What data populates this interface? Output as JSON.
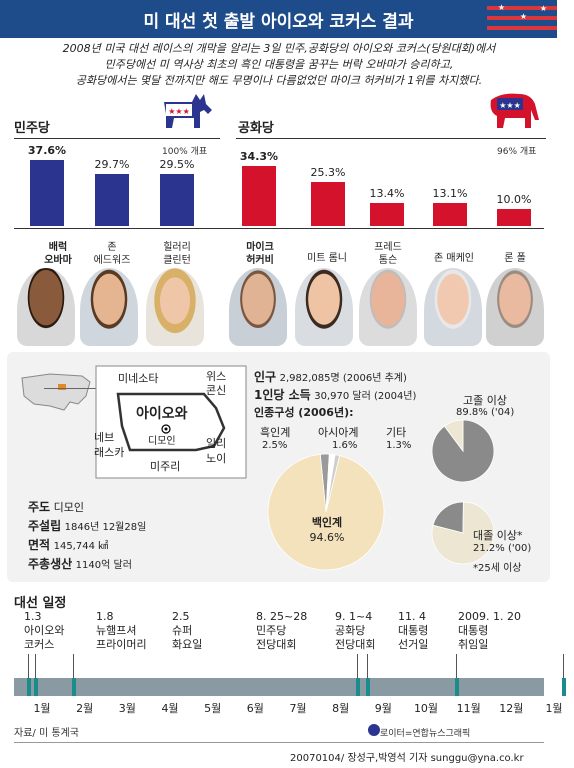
{
  "header": {
    "title": "미 대선 첫 출발 아이오와 코커스 결과",
    "intro": "2008년 미국 대선 레이스의 개막을 알리는 3일 민주,공화당의 아이오와 코커스(당원대회)에서\n민주당에선 미 역사상 최초의 흑인 대통령을 꿈꾸는 버락 오바마가 승리하고,\n공화당에서는 몇달 전까지만 해도 무명이나 다름없었던 마이크 허커비가 1위를 차지했다."
  },
  "chart_data": [
    {
      "type": "bar",
      "title": "민주당",
      "turnout_note": "100% 개표",
      "categories": [
        "배럭\n오바마",
        "존\n에드워즈",
        "힐러리\n클린턴"
      ],
      "values": [
        37.6,
        29.7,
        29.5
      ],
      "value_labels": [
        "37.6%",
        "29.7%",
        "29.5%"
      ],
      "ylim": [
        0,
        40
      ],
      "color": "#2b3590"
    },
    {
      "type": "bar",
      "title": "공화당",
      "turnout_note": "96% 개표",
      "categories": [
        "마이크\n허커비",
        "미트 롬니",
        "프레드\n톰슨",
        "존 매케인",
        "론 폴"
      ],
      "values": [
        34.3,
        25.3,
        13.4,
        13.1,
        10.0
      ],
      "value_labels": [
        "34.3%",
        "25.3%",
        "13.4%",
        "13.1%",
        "10.0%"
      ],
      "ylim": [
        0,
        40
      ],
      "color": "#d4122b"
    },
    {
      "type": "pie",
      "title": "인종구성 (2006년):",
      "labels": [
        "백인계",
        "흑인계",
        "아시아계",
        "기타"
      ],
      "values": [
        94.6,
        2.5,
        1.6,
        1.3
      ],
      "value_labels": [
        "94.6%",
        "2.5%",
        "1.6%",
        "1.3%"
      ]
    },
    {
      "type": "pie",
      "title": "고졸 이상",
      "values": [
        89.8,
        10.2
      ],
      "value_label": "89.8% ('04)"
    },
    {
      "type": "pie",
      "title": "대졸 이상*",
      "values": [
        21.2,
        78.8
      ],
      "value_label": "21.2% ('00)"
    }
  ],
  "iowa": {
    "map_labels": {
      "minnesota": "미네소타",
      "wisconsin": "위스\n콘신",
      "nebraska": "네브\n래스카",
      "illinois": "일리\n노이",
      "missouri": "미주리",
      "iowa": "아이오와",
      "des_moines": "디모인"
    },
    "stats": {
      "capital_label": "주도",
      "capital": "디모인",
      "founded_label": "주설립",
      "founded": "1846년 12월28일",
      "area_label": "면적",
      "area": "145,744 ㎢",
      "gdp_label": "주총생산",
      "gdp": "1140억 달러",
      "pop_label": "인구",
      "pop": "2,982,085명 (2006년 추계)",
      "income_label": "1인당 소득",
      "income": "30,970 달러 (2004년)",
      "footnote": "*25세 이상"
    }
  },
  "timeline": {
    "title": "대선 일정",
    "events": [
      {
        "date": "1.3",
        "desc": "아이오와\n코커스"
      },
      {
        "date": "1.8",
        "desc": "뉴햄프셔\n프라이머리"
      },
      {
        "date": "2.5",
        "desc": "슈퍼\n화요일"
      },
      {
        "date": "8. 25~28",
        "desc": "민주당\n전당대회"
      },
      {
        "date": "9. 1~4",
        "desc": "공화당\n전당대회"
      },
      {
        "date": "11. 4",
        "desc": "대통령\n선거일"
      },
      {
        "date": "2009. 1. 20",
        "desc": "대통령\n취임일"
      }
    ],
    "months": [
      "1월",
      "2월",
      "3월",
      "4월",
      "5월",
      "6월",
      "7월",
      "8월",
      "9월",
      "10월",
      "11월",
      "12월",
      "1월"
    ]
  },
  "footer": {
    "source": "자료/ 미 통계국",
    "credit": "로이터=연합뉴스그래픽",
    "byline": "20070104/ 장성구,박영석 기자 sunggu@yna.co.kr"
  },
  "colors": {
    "democrat": "#2b3590",
    "republican": "#d4122b",
    "header": "#1e4b8a",
    "timeline": "#8a9aa3",
    "pie_main": "#f3e2bb",
    "pie_grey": "#8a8a8a"
  }
}
